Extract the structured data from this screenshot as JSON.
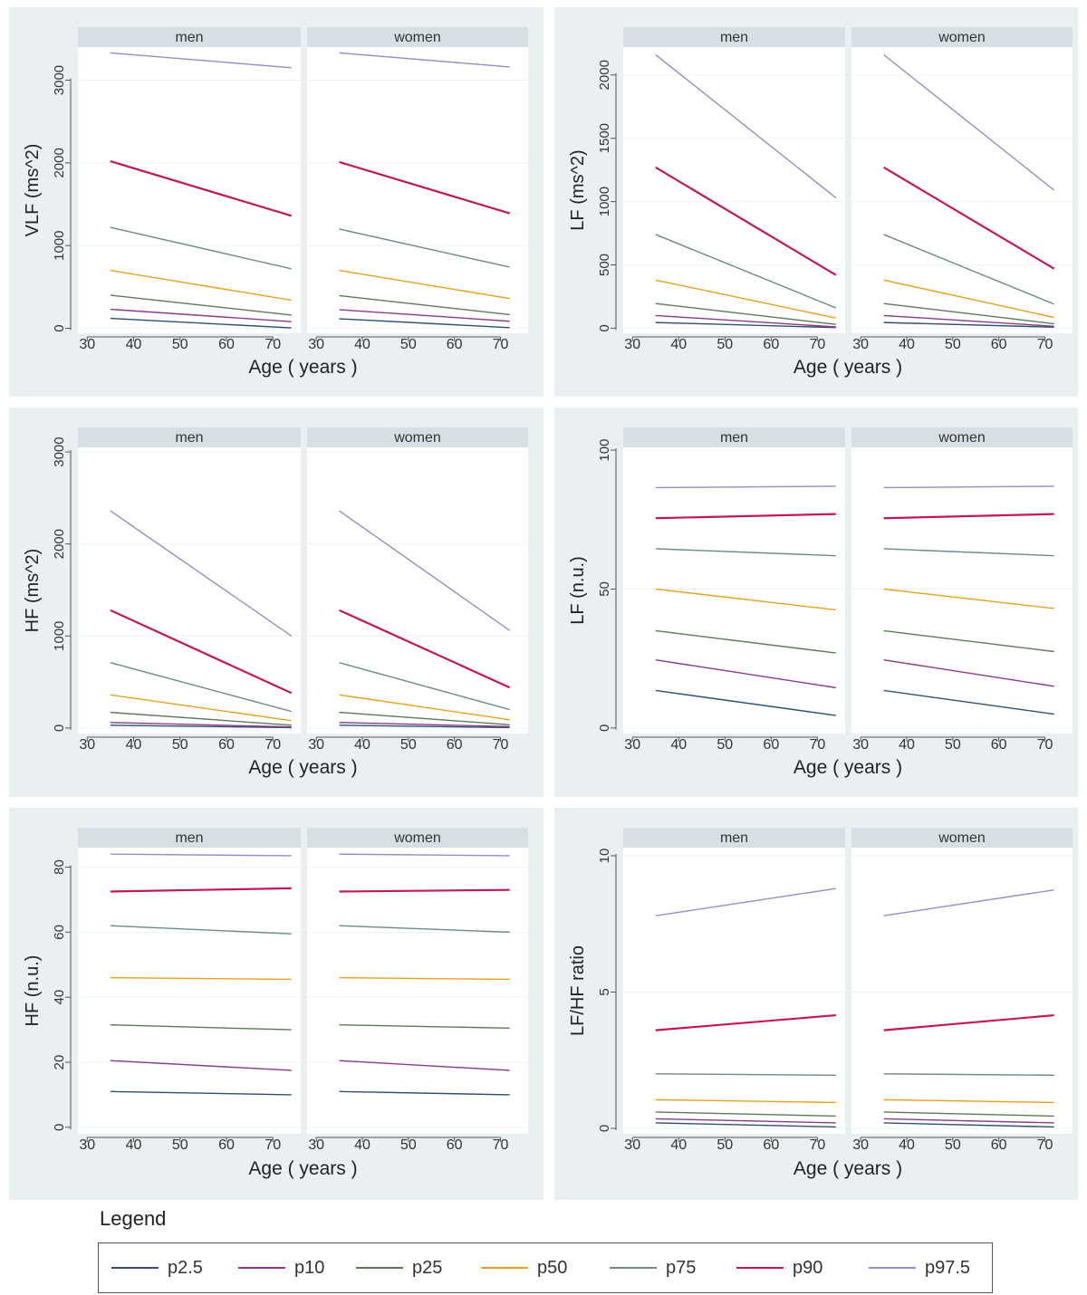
{
  "chart_data": [
    {
      "type": "line",
      "ylabel": "VLF (ms^2)",
      "xlabel": "Age ( years )",
      "panels": [
        "men",
        "women"
      ],
      "xlim": [
        28,
        76
      ],
      "ylim": [
        -60,
        3400
      ],
      "xticks": [
        30,
        40,
        50,
        60,
        70
      ],
      "yticks": [
        0,
        1000,
        2000,
        3000
      ],
      "series": [
        {
          "name": "p2.5",
          "men": [
            [
              35,
              120
            ],
            [
              74,
              5
            ]
          ],
          "women": [
            [
              35,
              115
            ],
            [
              72,
              8
            ]
          ]
        },
        {
          "name": "p10",
          "men": [
            [
              35,
              230
            ],
            [
              74,
              80
            ]
          ],
          "women": [
            [
              35,
              225
            ],
            [
              72,
              85
            ]
          ]
        },
        {
          "name": "p25",
          "men": [
            [
              35,
              400
            ],
            [
              74,
              160
            ]
          ],
          "women": [
            [
              35,
              395
            ],
            [
              72,
              165
            ]
          ]
        },
        {
          "name": "p50",
          "men": [
            [
              35,
              700
            ],
            [
              74,
              340
            ]
          ],
          "women": [
            [
              35,
              700
            ],
            [
              72,
              360
            ]
          ]
        },
        {
          "name": "p75",
          "men": [
            [
              35,
              1220
            ],
            [
              74,
              720
            ]
          ],
          "women": [
            [
              35,
              1200
            ],
            [
              72,
              740
            ]
          ]
        },
        {
          "name": "p90",
          "men": [
            [
              35,
              2020
            ],
            [
              74,
              1360
            ]
          ],
          "women": [
            [
              35,
              2010
            ],
            [
              72,
              1390
            ]
          ]
        },
        {
          "name": "p97.5",
          "men": [
            [
              35,
              3330
            ],
            [
              74,
              3150
            ]
          ],
          "women": [
            [
              35,
              3330
            ],
            [
              72,
              3160
            ]
          ]
        }
      ]
    },
    {
      "type": "line",
      "ylabel": "LF (ms^2)",
      "xlabel": "Age ( years )",
      "panels": [
        "men",
        "women"
      ],
      "xlim": [
        28,
        76
      ],
      "ylim": [
        -40,
        2220
      ],
      "xticks": [
        30,
        40,
        50,
        60,
        70
      ],
      "yticks": [
        0,
        500,
        1000,
        1500,
        2000
      ],
      "series": [
        {
          "name": "p2.5",
          "men": [
            [
              35,
              45
            ],
            [
              74,
              5
            ]
          ],
          "women": [
            [
              35,
              45
            ],
            [
              72,
              8
            ]
          ]
        },
        {
          "name": "p10",
          "men": [
            [
              35,
              100
            ],
            [
              74,
              10
            ]
          ],
          "women": [
            [
              35,
              100
            ],
            [
              72,
              15
            ]
          ]
        },
        {
          "name": "p25",
          "men": [
            [
              35,
              195
            ],
            [
              74,
              30
            ]
          ],
          "women": [
            [
              35,
              195
            ],
            [
              72,
              35
            ]
          ]
        },
        {
          "name": "p50",
          "men": [
            [
              35,
              380
            ],
            [
              74,
              80
            ]
          ],
          "women": [
            [
              35,
              380
            ],
            [
              72,
              85
            ]
          ]
        },
        {
          "name": "p75",
          "men": [
            [
              35,
              740
            ],
            [
              74,
              160
            ]
          ],
          "women": [
            [
              35,
              740
            ],
            [
              72,
              190
            ]
          ]
        },
        {
          "name": "p90",
          "men": [
            [
              35,
              1270
            ],
            [
              74,
              420
            ]
          ],
          "women": [
            [
              35,
              1270
            ],
            [
              72,
              470
            ]
          ]
        },
        {
          "name": "p97.5",
          "men": [
            [
              35,
              2160
            ],
            [
              74,
              1030
            ]
          ],
          "women": [
            [
              35,
              2160
            ],
            [
              72,
              1090
            ]
          ]
        }
      ]
    },
    {
      "type": "line",
      "ylabel": "HF (ms^2)",
      "xlabel": "Age ( years )",
      "panels": [
        "men",
        "women"
      ],
      "xlim": [
        28,
        76
      ],
      "ylim": [
        -60,
        3050
      ],
      "xticks": [
        30,
        40,
        50,
        60,
        70
      ],
      "yticks": [
        0,
        1000,
        2000,
        3000
      ],
      "series": [
        {
          "name": "p2.5",
          "men": [
            [
              35,
              30
            ],
            [
              74,
              5
            ]
          ],
          "women": [
            [
              35,
              30
            ],
            [
              72,
              5
            ]
          ]
        },
        {
          "name": "p10",
          "men": [
            [
              35,
              60
            ],
            [
              74,
              12
            ]
          ],
          "women": [
            [
              35,
              60
            ],
            [
              72,
              15
            ]
          ]
        },
        {
          "name": "p25",
          "men": [
            [
              35,
              170
            ],
            [
              74,
              30
            ]
          ],
          "women": [
            [
              35,
              170
            ],
            [
              72,
              35
            ]
          ]
        },
        {
          "name": "p50",
          "men": [
            [
              35,
              360
            ],
            [
              74,
              80
            ]
          ],
          "women": [
            [
              35,
              360
            ],
            [
              72,
              90
            ]
          ]
        },
        {
          "name": "p75",
          "men": [
            [
              35,
              710
            ],
            [
              74,
              180
            ]
          ],
          "women": [
            [
              35,
              710
            ],
            [
              72,
              200
            ]
          ]
        },
        {
          "name": "p90",
          "men": [
            [
              35,
              1280
            ],
            [
              74,
              380
            ]
          ],
          "women": [
            [
              35,
              1280
            ],
            [
              72,
              440
            ]
          ]
        },
        {
          "name": "p97.5",
          "men": [
            [
              35,
              2360
            ],
            [
              74,
              1000
            ]
          ],
          "women": [
            [
              35,
              2360
            ],
            [
              72,
              1060
            ]
          ]
        }
      ]
    },
    {
      "type": "line",
      "ylabel": "LF (n.u.)",
      "xlabel": "Age ( years )",
      "panels": [
        "men",
        "women"
      ],
      "xlim": [
        28,
        76
      ],
      "ylim": [
        -2,
        101
      ],
      "xticks": [
        30,
        40,
        50,
        60,
        70
      ],
      "yticks": [
        0,
        50,
        100
      ],
      "series": [
        {
          "name": "p2.5",
          "men": [
            [
              35,
              13.5
            ],
            [
              74,
              4.5
            ]
          ],
          "women": [
            [
              35,
              13.5
            ],
            [
              72,
              5
            ]
          ]
        },
        {
          "name": "p10",
          "men": [
            [
              35,
              24.5
            ],
            [
              74,
              14.5
            ]
          ],
          "women": [
            [
              35,
              24.5
            ],
            [
              72,
              15
            ]
          ]
        },
        {
          "name": "p25",
          "men": [
            [
              35,
              35
            ],
            [
              74,
              27
            ]
          ],
          "women": [
            [
              35,
              35
            ],
            [
              72,
              27.5
            ]
          ]
        },
        {
          "name": "p50",
          "men": [
            [
              35,
              50
            ],
            [
              74,
              42.5
            ]
          ],
          "women": [
            [
              35,
              50
            ],
            [
              72,
              43
            ]
          ]
        },
        {
          "name": "p75",
          "men": [
            [
              35,
              64.5
            ],
            [
              74,
              62
            ]
          ],
          "women": [
            [
              35,
              64.5
            ],
            [
              72,
              62
            ]
          ]
        },
        {
          "name": "p90",
          "men": [
            [
              35,
              75.5
            ],
            [
              74,
              77
            ]
          ],
          "women": [
            [
              35,
              75.5
            ],
            [
              72,
              77
            ]
          ]
        },
        {
          "name": "p97.5",
          "men": [
            [
              35,
              86.5
            ],
            [
              74,
              87
            ]
          ],
          "women": [
            [
              35,
              86.5
            ],
            [
              72,
              87
            ]
          ]
        }
      ]
    },
    {
      "type": "line",
      "ylabel": "HF (n.u.)",
      "xlabel": "Age ( years )",
      "panels": [
        "men",
        "women"
      ],
      "xlim": [
        28,
        76
      ],
      "ylim": [
        -2,
        86
      ],
      "xticks": [
        30,
        40,
        50,
        60,
        70
      ],
      "yticks": [
        0,
        20,
        40,
        60,
        80
      ],
      "series": [
        {
          "name": "p2.5",
          "men": [
            [
              35,
              11
            ],
            [
              74,
              10
            ]
          ],
          "women": [
            [
              35,
              11
            ],
            [
              72,
              10
            ]
          ]
        },
        {
          "name": "p10",
          "men": [
            [
              35,
              20.5
            ],
            [
              74,
              17.5
            ]
          ],
          "women": [
            [
              35,
              20.5
            ],
            [
              72,
              17.5
            ]
          ]
        },
        {
          "name": "p25",
          "men": [
            [
              35,
              31.5
            ],
            [
              74,
              30
            ]
          ],
          "women": [
            [
              35,
              31.5
            ],
            [
              72,
              30.5
            ]
          ]
        },
        {
          "name": "p50",
          "men": [
            [
              35,
              46
            ],
            [
              74,
              45.5
            ]
          ],
          "women": [
            [
              35,
              46
            ],
            [
              72,
              45.5
            ]
          ]
        },
        {
          "name": "p75",
          "men": [
            [
              35,
              62
            ],
            [
              74,
              59.5
            ]
          ],
          "women": [
            [
              35,
              62
            ],
            [
              72,
              60
            ]
          ]
        },
        {
          "name": "p90",
          "men": [
            [
              35,
              72.5
            ],
            [
              74,
              73.5
            ]
          ],
          "women": [
            [
              35,
              72.5
            ],
            [
              72,
              73
            ]
          ]
        },
        {
          "name": "p97.5",
          "men": [
            [
              35,
              84
            ],
            [
              74,
              83.5
            ]
          ],
          "women": [
            [
              35,
              84
            ],
            [
              72,
              83.5
            ]
          ]
        }
      ]
    },
    {
      "type": "line",
      "ylabel": "LF/HF ratio",
      "xlabel": "Age ( years )",
      "panels": [
        "men",
        "women"
      ],
      "xlim": [
        28,
        76
      ],
      "ylim": [
        -0.2,
        10.3
      ],
      "xticks": [
        30,
        40,
        50,
        60,
        70
      ],
      "yticks": [
        0,
        5,
        10
      ],
      "series": [
        {
          "name": "p2.5",
          "men": [
            [
              35,
              0.2
            ],
            [
              74,
              0.05
            ]
          ],
          "women": [
            [
              35,
              0.2
            ],
            [
              72,
              0.05
            ]
          ]
        },
        {
          "name": "p10",
          "men": [
            [
              35,
              0.35
            ],
            [
              74,
              0.2
            ]
          ],
          "women": [
            [
              35,
              0.35
            ],
            [
              72,
              0.2
            ]
          ]
        },
        {
          "name": "p25",
          "men": [
            [
              35,
              0.6
            ],
            [
              74,
              0.45
            ]
          ],
          "women": [
            [
              35,
              0.6
            ],
            [
              72,
              0.45
            ]
          ]
        },
        {
          "name": "p50",
          "men": [
            [
              35,
              1.05
            ],
            [
              74,
              0.95
            ]
          ],
          "women": [
            [
              35,
              1.05
            ],
            [
              72,
              0.95
            ]
          ]
        },
        {
          "name": "p75",
          "men": [
            [
              35,
              2.0
            ],
            [
              74,
              1.95
            ]
          ],
          "women": [
            [
              35,
              2.0
            ],
            [
              72,
              1.95
            ]
          ]
        },
        {
          "name": "p90",
          "men": [
            [
              35,
              3.6
            ],
            [
              74,
              4.15
            ]
          ],
          "women": [
            [
              35,
              3.6
            ],
            [
              72,
              4.15
            ]
          ]
        },
        {
          "name": "p97.5",
          "men": [
            [
              35,
              7.8
            ],
            [
              74,
              8.8
            ]
          ],
          "women": [
            [
              35,
              7.8
            ],
            [
              72,
              8.75
            ]
          ]
        }
      ]
    }
  ],
  "legend": {
    "title": "Legend",
    "items": [
      {
        "label": "p2.5",
        "color": "#2f4f6f"
      },
      {
        "label": "p10",
        "color": "#8b3a8b"
      },
      {
        "label": "p25",
        "color": "#5a7a55"
      },
      {
        "label": "p50",
        "color": "#e8a020"
      },
      {
        "label": "p75",
        "color": "#6a8a8a"
      },
      {
        "label": "p90",
        "color": "#c0185a"
      },
      {
        "label": "p97.5",
        "color": "#9a8ac8"
      }
    ]
  },
  "colors": {
    "figure_background": "#eaf0f2",
    "strip_background": "#d5dfe4",
    "plot_background": "#ffffff"
  }
}
